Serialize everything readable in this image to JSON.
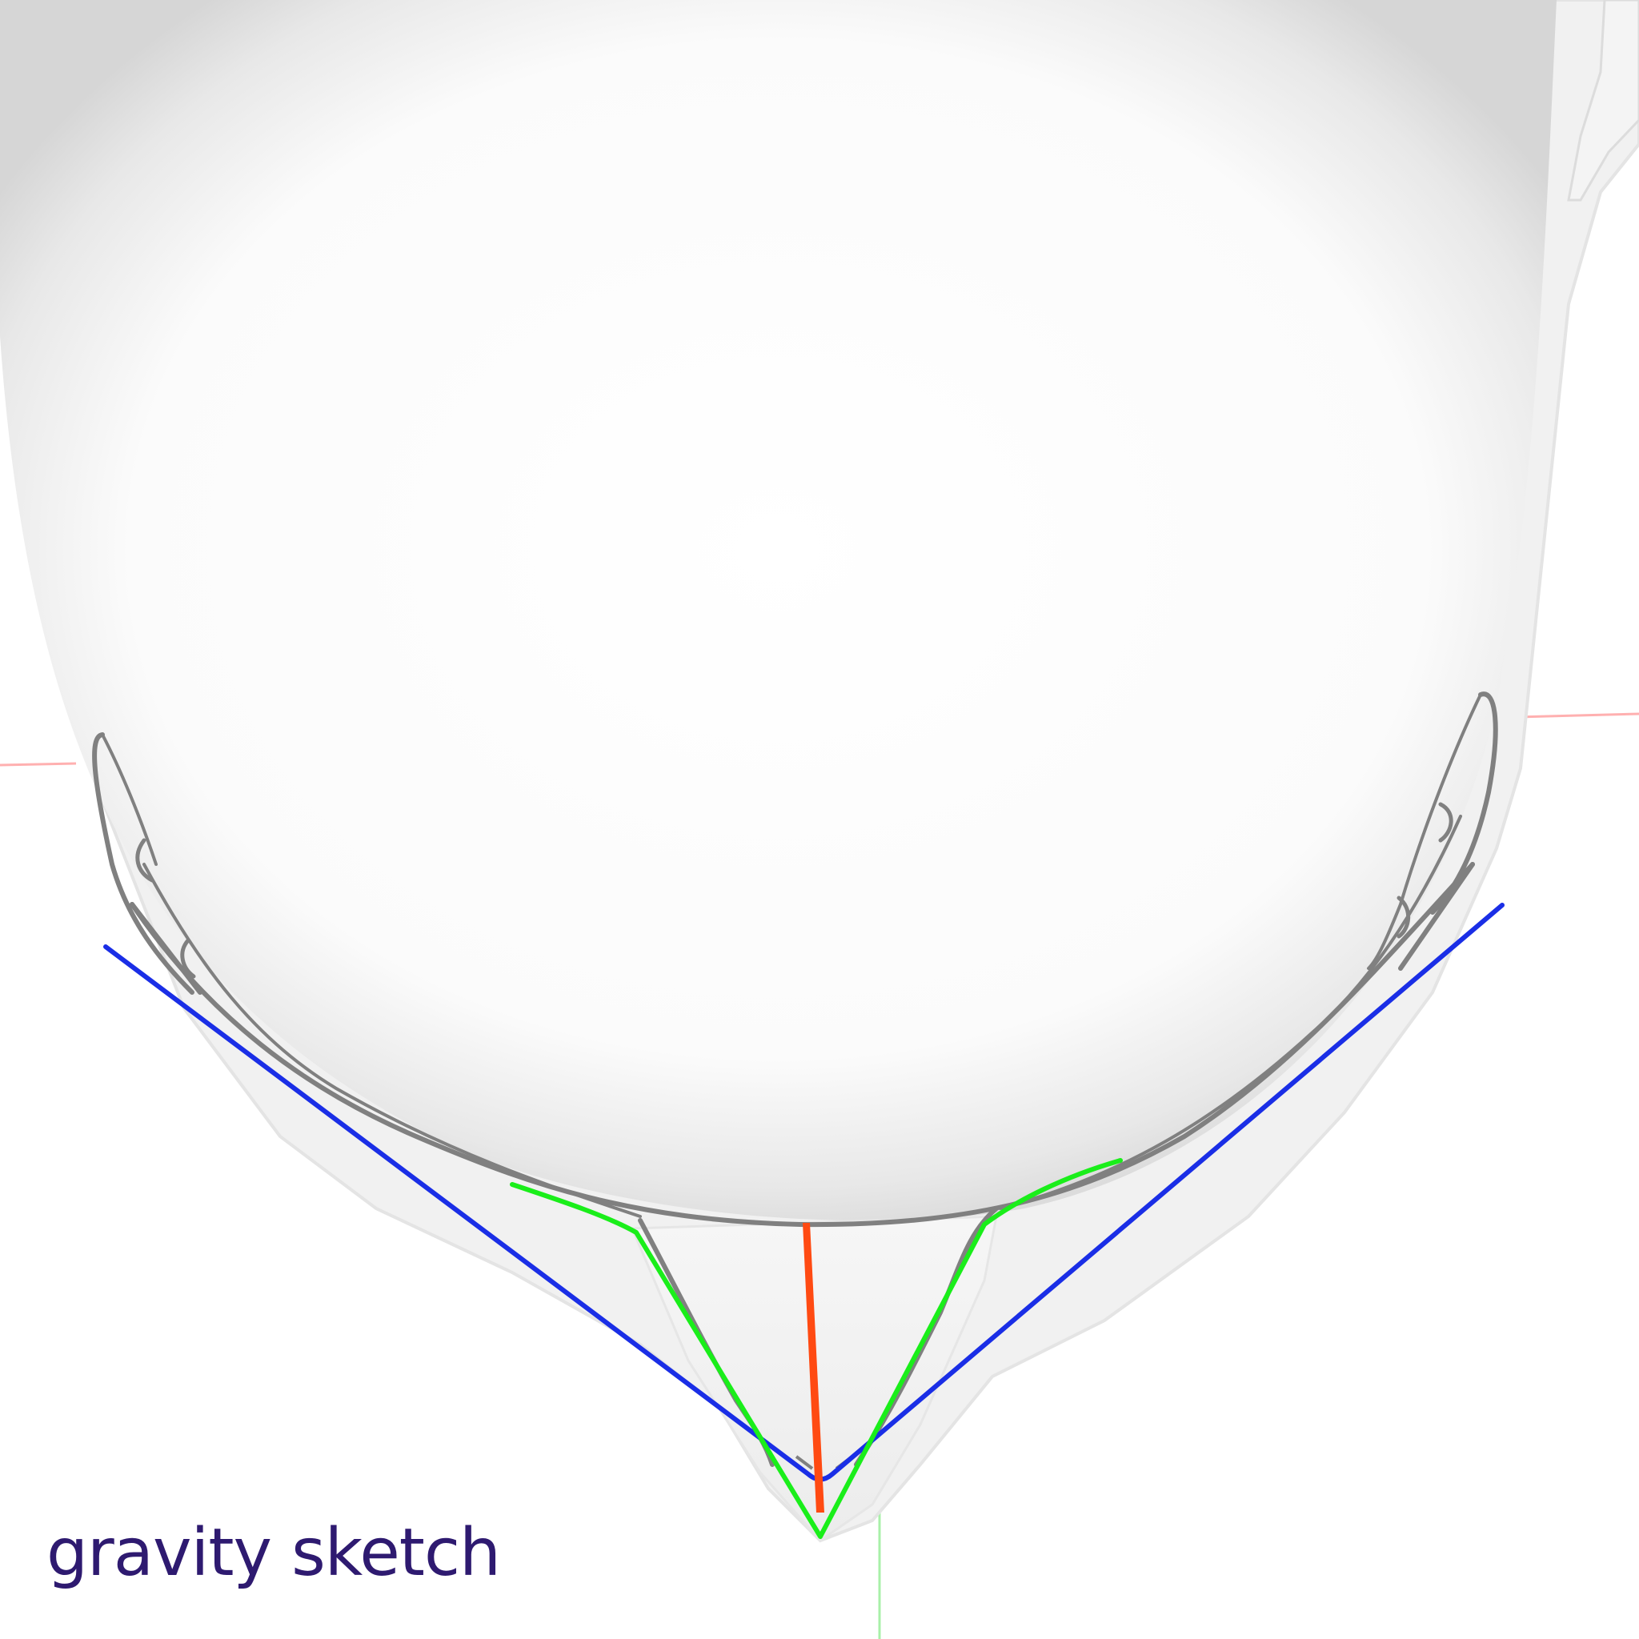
{
  "watermark": {
    "text": "gravity sketch",
    "color": "#2e1a70"
  },
  "colors": {
    "background": "#ffffff",
    "surface": "#f1f1f1",
    "surface_shadow": "#d9d9d9",
    "grey_curve": "#808080",
    "blue_curve": "#1a2ee6",
    "green_curve": "#1aee1a",
    "red_curve": "#ff4a12",
    "axis_red": "#ffb0b0",
    "axis_green": "#a8f0a8"
  }
}
